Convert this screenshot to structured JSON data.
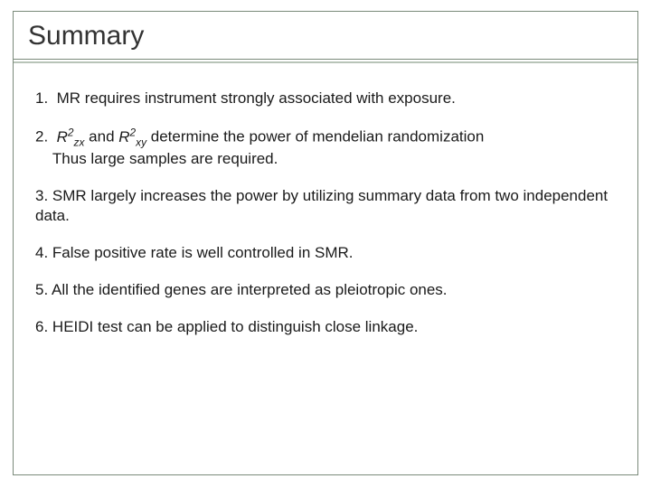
{
  "slide": {
    "title": "Summary",
    "title_color": "#333333",
    "title_fontsize": 30,
    "body_fontsize": 17,
    "body_color": "#1a1a1a",
    "background_color": "#ffffff",
    "frame_border_color": "#7a8a7a",
    "divider_color": "#7a8a7a",
    "underline_color": "#b8c4b8",
    "items": [
      {
        "num": "1.",
        "text": "MR requires instrument strongly associated with exposure."
      },
      {
        "num": "2.",
        "r2_prefix": "R",
        "r2_sup": "2",
        "r2_sub1": "zx",
        "join": " and ",
        "r2_sub2": "xy",
        "tail": " determine the power of mendelian randomization",
        "line2": "Thus large samples are required.",
        "indent_line2": "    "
      },
      {
        "num": "3.",
        "text": "SMR largely increases the power by utilizing summary data from two independent data."
      },
      {
        "num": "4.",
        "text": "False positive rate is well controlled in SMR."
      },
      {
        "num": "5.",
        "text": "All the identified genes are interpreted as pleiotropic ones."
      },
      {
        "num": "6.",
        "text": "HEIDI test can be applied to distinguish close linkage."
      }
    ]
  }
}
